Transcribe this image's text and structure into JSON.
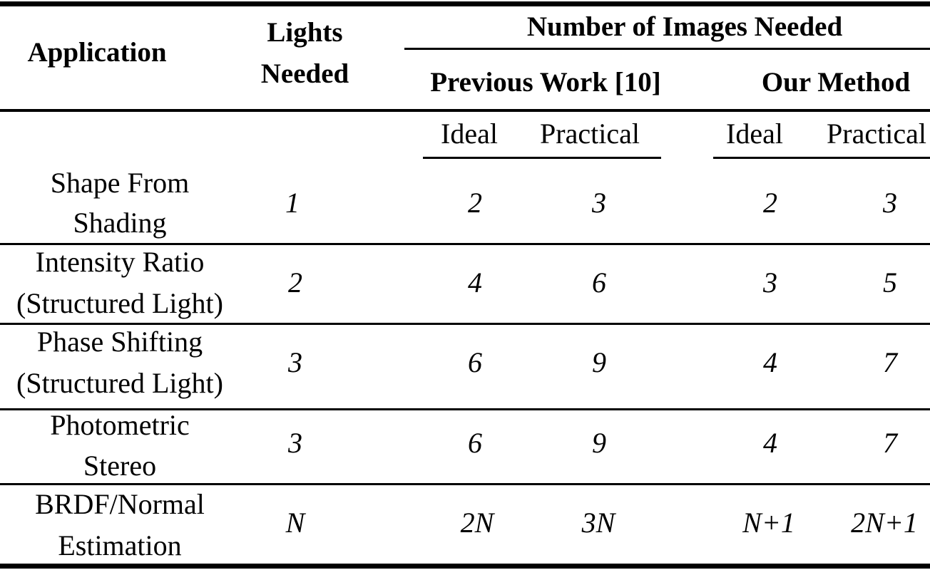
{
  "header": {
    "application": "Application",
    "lights_needed_line1": "Lights",
    "lights_needed_line2": "Needed",
    "number_of_images_needed": "Number of Images Needed",
    "previous_work": "Previous Work [10]",
    "our_method": "Our Method"
  },
  "subheader": {
    "prev_ideal": "Ideal",
    "prev_practical": "Practical",
    "ours_ideal": "Ideal",
    "ours_practical": "Practical"
  },
  "rows": [
    {
      "app_line1": "Shape From",
      "app_line2": "Shading",
      "lights": "1",
      "prev_ideal": "2",
      "prev_practical": "3",
      "ours_ideal": "2",
      "ours_practical": "3"
    },
    {
      "app_line1": "Intensity Ratio",
      "app_line2": "(Structured Light)",
      "lights": "2",
      "prev_ideal": "4",
      "prev_practical": "6",
      "ours_ideal": "3",
      "ours_practical": "5"
    },
    {
      "app_line1": "Phase Shifting",
      "app_line2": "(Structured Light)",
      "lights": "3",
      "prev_ideal": "6",
      "prev_practical": "9",
      "ours_ideal": "4",
      "ours_practical": "7"
    },
    {
      "app_line1": "Photometric",
      "app_line2": "Stereo",
      "lights": "3",
      "prev_ideal": "6",
      "prev_practical": "9",
      "ours_ideal": "4",
      "ours_practical": "7"
    },
    {
      "app_line1": "BRDF/Normal",
      "app_line2": "Estimation",
      "lights": "N",
      "prev_ideal": "2N",
      "prev_practical": "3N",
      "ours_ideal": "N+1",
      "ours_practical": "2N+1"
    }
  ]
}
